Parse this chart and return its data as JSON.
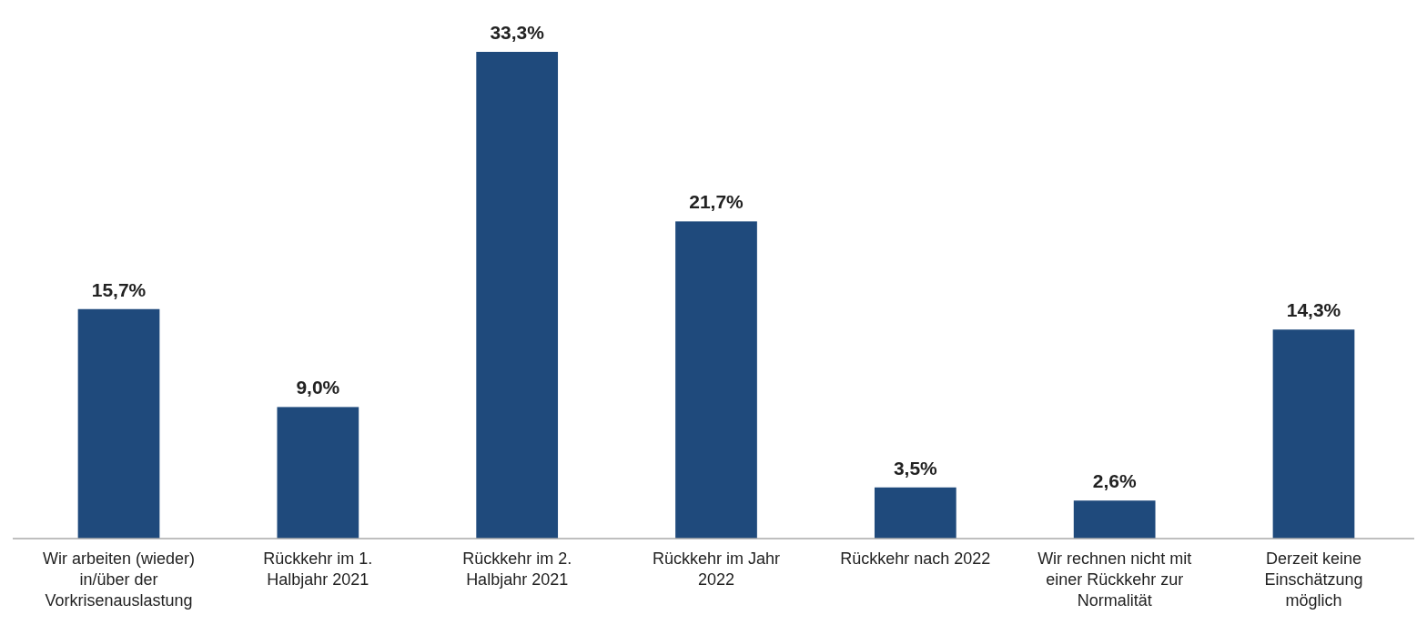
{
  "chart_data": {
    "type": "bar",
    "categories": [
      "Wir arbeiten (wieder) in/über der Vorkrisenauslastung",
      "Rückkehr im 1. Halbjahr 2021",
      "Rückkehr im 2. Halbjahr 2021",
      "Rückkehr im Jahr 2022",
      "Rückkehr nach 2022",
      "Wir rechnen nicht mit einer Rückkehr zur Normalität",
      "Derzeit keine Einschätzung möglich"
    ],
    "values": [
      15.7,
      9.0,
      33.3,
      21.7,
      3.5,
      2.6,
      14.3
    ],
    "value_labels": [
      "15,7%",
      "9,0%",
      "33,3%",
      "21,7%",
      "3,5%",
      "2,6%",
      "14,3%"
    ],
    "color": "#1f4a7c"
  }
}
